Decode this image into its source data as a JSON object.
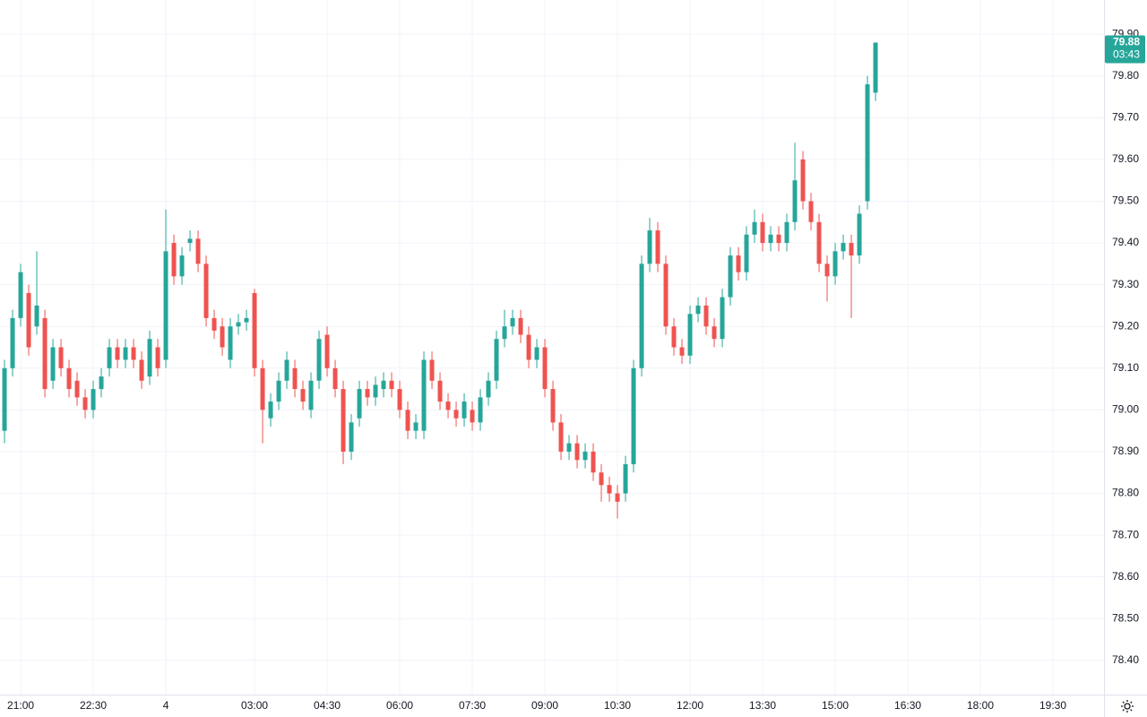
{
  "chart_data": {
    "type": "candlestick",
    "last_price": 79.88,
    "countdown": "03:43",
    "open": [
      78.95,
      79.1,
      79.22,
      79.28,
      79.2,
      79.22,
      79.07,
      79.15,
      79.1,
      79.07,
      79.03,
      79.0,
      79.05,
      79.1,
      79.15,
      79.12,
      79.15,
      79.12,
      79.08,
      79.15,
      79.12,
      79.4,
      79.32,
      79.4,
      79.41,
      79.35,
      79.22,
      79.2,
      79.12,
      79.2,
      79.21,
      79.28,
      79.1,
      78.98,
      79.02,
      79.07,
      79.1,
      79.05,
      79.0,
      79.07,
      79.18,
      79.1,
      79.05,
      78.9,
      78.98,
      79.05,
      79.03,
      79.05,
      79.07,
      79.05,
      79.0,
      78.95,
      78.95,
      79.12,
      79.07,
      79.02,
      79.0,
      78.98,
      79.0,
      78.97,
      79.03,
      79.07,
      79.17,
      79.2,
      79.22,
      79.18,
      79.12,
      79.15,
      79.05,
      78.97,
      78.9,
      78.92,
      78.88,
      78.9,
      78.85,
      78.82,
      78.8,
      78.8,
      78.87,
      79.1,
      79.35,
      79.43,
      79.35,
      79.2,
      79.15,
      79.13,
      79.23,
      79.25,
      79.2,
      79.17,
      79.27,
      79.37,
      79.33,
      79.42,
      79.45,
      79.4,
      79.42,
      79.4,
      79.45,
      79.6,
      79.5,
      79.45,
      79.35,
      79.32,
      79.38,
      79.4,
      79.37,
      79.5,
      79.76
    ],
    "high": [
      79.12,
      79.24,
      79.35,
      79.3,
      79.38,
      79.24,
      79.17,
      79.17,
      79.12,
      79.09,
      79.05,
      79.07,
      79.1,
      79.17,
      79.17,
      79.17,
      79.17,
      79.14,
      79.19,
      79.17,
      79.48,
      79.42,
      79.39,
      79.43,
      79.43,
      79.37,
      79.24,
      79.22,
      79.22,
      79.23,
      79.24,
      79.29,
      79.12,
      79.04,
      79.09,
      79.14,
      79.12,
      79.07,
      79.09,
      79.19,
      79.2,
      79.12,
      79.07,
      78.99,
      79.07,
      79.07,
      79.08,
      79.09,
      79.09,
      79.07,
      79.02,
      78.99,
      79.14,
      79.14,
      79.09,
      79.04,
      79.02,
      79.04,
      79.02,
      79.05,
      79.09,
      79.19,
      79.24,
      79.24,
      79.24,
      79.2,
      79.17,
      79.17,
      79.07,
      78.99,
      78.94,
      78.94,
      78.92,
      78.92,
      78.87,
      78.84,
      78.82,
      78.89,
      79.12,
      79.37,
      79.46,
      79.45,
      79.37,
      79.22,
      79.17,
      79.25,
      79.27,
      79.27,
      79.22,
      79.29,
      79.39,
      79.39,
      79.44,
      79.48,
      79.47,
      79.44,
      79.44,
      79.47,
      79.64,
      79.62,
      79.52,
      79.47,
      79.37,
      79.4,
      79.42,
      79.42,
      79.49,
      79.8,
      79.88
    ],
    "low": [
      78.92,
      79.08,
      79.2,
      79.13,
      79.18,
      79.03,
      79.05,
      79.08,
      79.03,
      79.01,
      78.98,
      78.98,
      79.03,
      79.08,
      79.1,
      79.1,
      79.1,
      79.05,
      79.06,
      79.08,
      79.1,
      79.3,
      79.3,
      79.38,
      79.33,
      79.2,
      79.17,
      79.13,
      79.1,
      79.18,
      79.19,
      79.08,
      78.92,
      78.96,
      79.0,
      79.05,
      79.03,
      79.0,
      78.98,
      79.05,
      79.08,
      79.03,
      78.87,
      78.88,
      78.96,
      79.01,
      79.01,
      79.03,
      79.03,
      78.98,
      78.93,
      78.93,
      78.93,
      79.05,
      79.0,
      78.98,
      78.96,
      78.96,
      78.95,
      78.95,
      79.01,
      79.05,
      79.15,
      79.18,
      79.16,
      79.1,
      79.1,
      79.03,
      78.95,
      78.88,
      78.88,
      78.86,
      78.86,
      78.83,
      78.78,
      78.78,
      78.74,
      78.78,
      78.85,
      79.08,
      79.33,
      79.33,
      79.18,
      79.13,
      79.11,
      79.11,
      79.21,
      79.18,
      79.15,
      79.15,
      79.25,
      79.31,
      79.31,
      79.4,
      79.38,
      79.38,
      79.38,
      79.38,
      79.43,
      79.48,
      79.43,
      79.33,
      79.26,
      79.3,
      79.36,
      79.22,
      79.35,
      79.48,
      79.74
    ],
    "close": [
      79.1,
      79.22,
      79.33,
      79.15,
      79.25,
      79.05,
      79.15,
      79.1,
      79.05,
      79.03,
      79.0,
      79.05,
      79.08,
      79.15,
      79.12,
      79.15,
      79.12,
      79.07,
      79.17,
      79.1,
      79.38,
      79.32,
      79.37,
      79.41,
      79.35,
      79.22,
      79.19,
      79.15,
      79.2,
      79.21,
      79.22,
      79.1,
      79.0,
      79.02,
      79.07,
      79.12,
      79.05,
      79.02,
      79.07,
      79.17,
      79.1,
      79.05,
      78.9,
      78.97,
      79.05,
      79.03,
      79.06,
      79.07,
      79.05,
      79.0,
      78.95,
      78.97,
      79.12,
      79.07,
      79.02,
      79.0,
      78.98,
      79.02,
      78.97,
      79.03,
      79.07,
      79.17,
      79.2,
      79.22,
      79.18,
      79.12,
      79.15,
      79.05,
      78.97,
      78.9,
      78.92,
      78.88,
      78.9,
      78.85,
      78.82,
      78.8,
      78.78,
      78.87,
      79.1,
      79.35,
      79.43,
      79.35,
      79.2,
      79.15,
      79.13,
      79.23,
      79.25,
      79.2,
      79.17,
      79.27,
      79.37,
      79.33,
      79.42,
      79.45,
      79.4,
      79.42,
      79.4,
      79.45,
      79.55,
      79.5,
      79.45,
      79.35,
      79.32,
      79.38,
      79.4,
      79.37,
      79.47,
      79.78,
      79.88
    ],
    "up_color": "#26a69a",
    "down_color": "#ef5350",
    "grid": true,
    "xlim": [
      -0.56,
      136.33
    ],
    "xticks": [
      {
        "value": 2,
        "label": "21:00"
      },
      {
        "value": 11,
        "label": "22:30"
      },
      {
        "value": 20,
        "label": "4"
      },
      {
        "value": 31,
        "label": "03:00"
      },
      {
        "value": 40,
        "label": "04:30"
      },
      {
        "value": 49,
        "label": "06:00"
      },
      {
        "value": 58,
        "label": "07:30"
      },
      {
        "value": 67,
        "label": "09:00"
      },
      {
        "value": 76,
        "label": "10:30"
      },
      {
        "value": 85,
        "label": "12:00"
      },
      {
        "value": 94,
        "label": "13:30"
      },
      {
        "value": 103,
        "label": "15:00"
      },
      {
        "value": 112,
        "label": "16:30"
      },
      {
        "value": 121,
        "label": "18:00"
      },
      {
        "value": 130,
        "label": "19:30"
      }
    ],
    "ylim": [
      78.318,
      79.982
    ],
    "yticks": [
      {
        "value": 78.4,
        "label": "78.40"
      },
      {
        "value": 78.5,
        "label": "78.50"
      },
      {
        "value": 78.6,
        "label": "78.60"
      },
      {
        "value": 78.7,
        "label": "78.70"
      },
      {
        "value": 78.8,
        "label": "78.80"
      },
      {
        "value": 78.9,
        "label": "78.90"
      },
      {
        "value": 79.0,
        "label": "79.00"
      },
      {
        "value": 79.1,
        "label": "79.10"
      },
      {
        "value": 79.2,
        "label": "79.20"
      },
      {
        "value": 79.3,
        "label": "79.30"
      },
      {
        "value": 79.4,
        "label": "79.40"
      },
      {
        "value": 79.5,
        "label": "79.50"
      },
      {
        "value": 79.6,
        "label": "79.60"
      },
      {
        "value": 79.7,
        "label": "79.70"
      },
      {
        "value": 79.8,
        "label": "79.80"
      },
      {
        "value": 79.9,
        "label": "79.90"
      }
    ]
  }
}
